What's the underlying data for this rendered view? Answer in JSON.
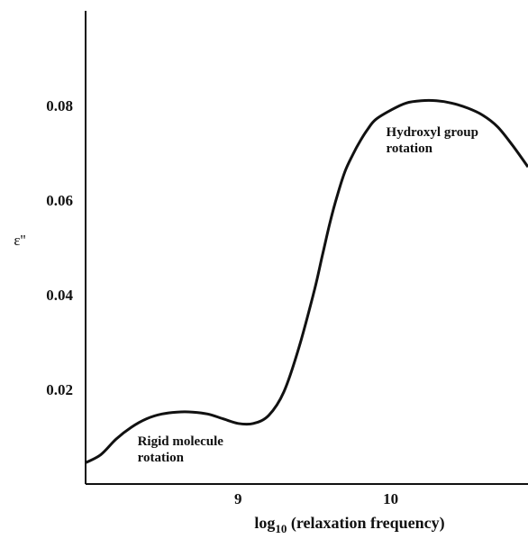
{
  "chart_data": {
    "type": "line",
    "ylabel": "ε''",
    "xlabel_prefix": "log",
    "xlabel_sub": "10",
    "xlabel_suffix": " (relaxation frequency)",
    "xlim": [
      8.0,
      10.9
    ],
    "ylim": [
      0.0,
      0.1
    ],
    "x_ticks": [
      9,
      10
    ],
    "x_tick_labels": [
      "9",
      "10"
    ],
    "y_ticks": [
      0.02,
      0.04,
      0.06,
      0.08
    ],
    "y_tick_labels": [
      "0.02",
      "0.04",
      "0.06",
      "0.08"
    ],
    "series": [
      {
        "x": [
          8.0,
          8.1,
          8.2,
          8.3,
          8.4,
          8.5,
          8.6,
          8.7,
          8.8,
          8.9,
          9.0,
          9.1,
          9.2,
          9.3,
          9.4,
          9.5,
          9.55,
          9.6,
          9.65,
          9.7,
          9.75,
          9.8,
          9.85,
          9.9,
          10.0,
          10.1,
          10.2,
          10.3,
          10.4,
          10.5,
          10.6,
          10.7,
          10.8,
          10.9
        ],
        "y": [
          0.0045,
          0.0062,
          0.0095,
          0.012,
          0.0138,
          0.0148,
          0.0152,
          0.0152,
          0.0148,
          0.0138,
          0.0128,
          0.0128,
          0.0145,
          0.0195,
          0.029,
          0.041,
          0.048,
          0.055,
          0.061,
          0.066,
          0.0695,
          0.0725,
          0.075,
          0.077,
          0.079,
          0.0805,
          0.081,
          0.081,
          0.0805,
          0.0795,
          0.078,
          0.0755,
          0.0715,
          0.067
        ]
      }
    ],
    "annotations": [
      {
        "lines": [
          "Rigid molecule",
          "rotation"
        ],
        "x": 8.34,
        "y": 0.0082
      },
      {
        "lines": [
          "Hydroxyl group",
          "rotation"
        ],
        "x": 9.97,
        "y": 0.0735
      }
    ],
    "grid": false
  }
}
